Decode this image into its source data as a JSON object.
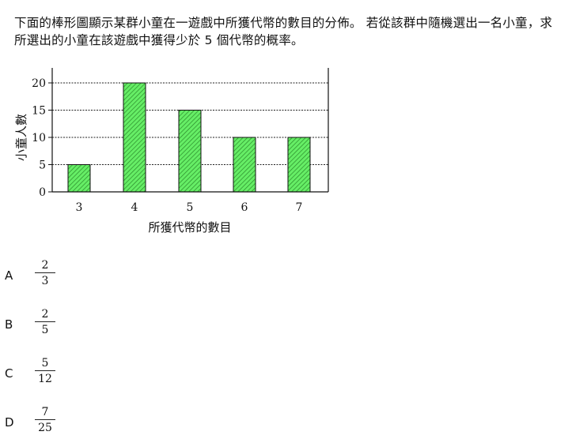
{
  "question": {
    "text": "下面的棒形圖顯示某群小童在一遊戲中所獲代幣的數目的分佈。 若從該群中隨機選出一名小童，求所選出的小童在該遊戲中獲得少於 5 個代幣的概率。"
  },
  "chart_data": {
    "type": "bar",
    "categories": [
      "3",
      "4",
      "5",
      "6",
      "7"
    ],
    "values": [
      5,
      20,
      15,
      10,
      10
    ],
    "title": "",
    "xlabel": "所獲代幣的數目",
    "ylabel": "小童人數",
    "ylim": [
      0,
      20
    ],
    "yticks": [
      0,
      5,
      10,
      15,
      20
    ],
    "grid": true,
    "bar_color": "#66ee66",
    "bar_hatch_color": "#2a8a2a"
  },
  "options": [
    {
      "letter": "A",
      "numerator": "2",
      "denominator": "3"
    },
    {
      "letter": "B",
      "numerator": "2",
      "denominator": "5"
    },
    {
      "letter": "C",
      "numerator": "5",
      "denominator": "12"
    },
    {
      "letter": "D",
      "numerator": "7",
      "denominator": "25"
    }
  ]
}
